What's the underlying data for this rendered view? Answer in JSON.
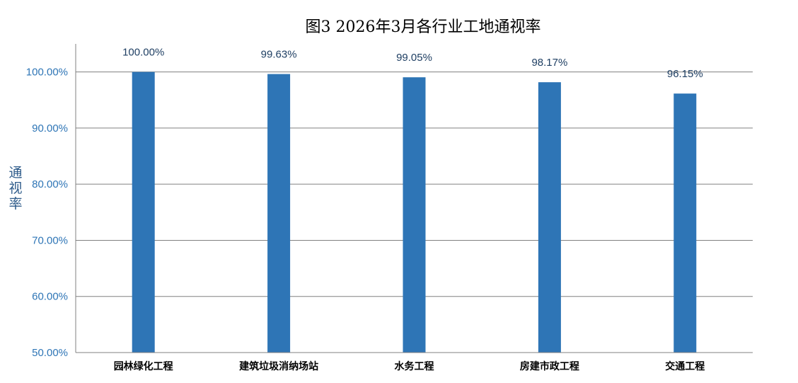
{
  "chart_data": {
    "type": "bar",
    "title": "图3 2026年3月各行业工地通视率",
    "xlabel": "",
    "ylabel": "通视率",
    "categories": [
      "园林绿化工程",
      "建筑垃圾消纳场站",
      "水务工程",
      "房建市政工程",
      "交通工程"
    ],
    "values": [
      100.0,
      99.63,
      99.05,
      98.17,
      96.15
    ],
    "data_labels": [
      "100.00%",
      "99.63%",
      "99.05%",
      "98.17%",
      "96.15%"
    ],
    "ylim": [
      50,
      105
    ],
    "yticks": [
      50,
      60,
      70,
      80,
      90,
      100
    ],
    "ytick_labels": [
      "50.00%",
      "60.00%",
      "70.00%",
      "80.00%",
      "90.00%",
      "100.00%"
    ],
    "grid": true,
    "legend": "none",
    "colors": {
      "bar": "#2e75b6",
      "tick_text": "#2e75b6",
      "data_label_text": "#1f3f63",
      "grid": "#808080"
    }
  }
}
